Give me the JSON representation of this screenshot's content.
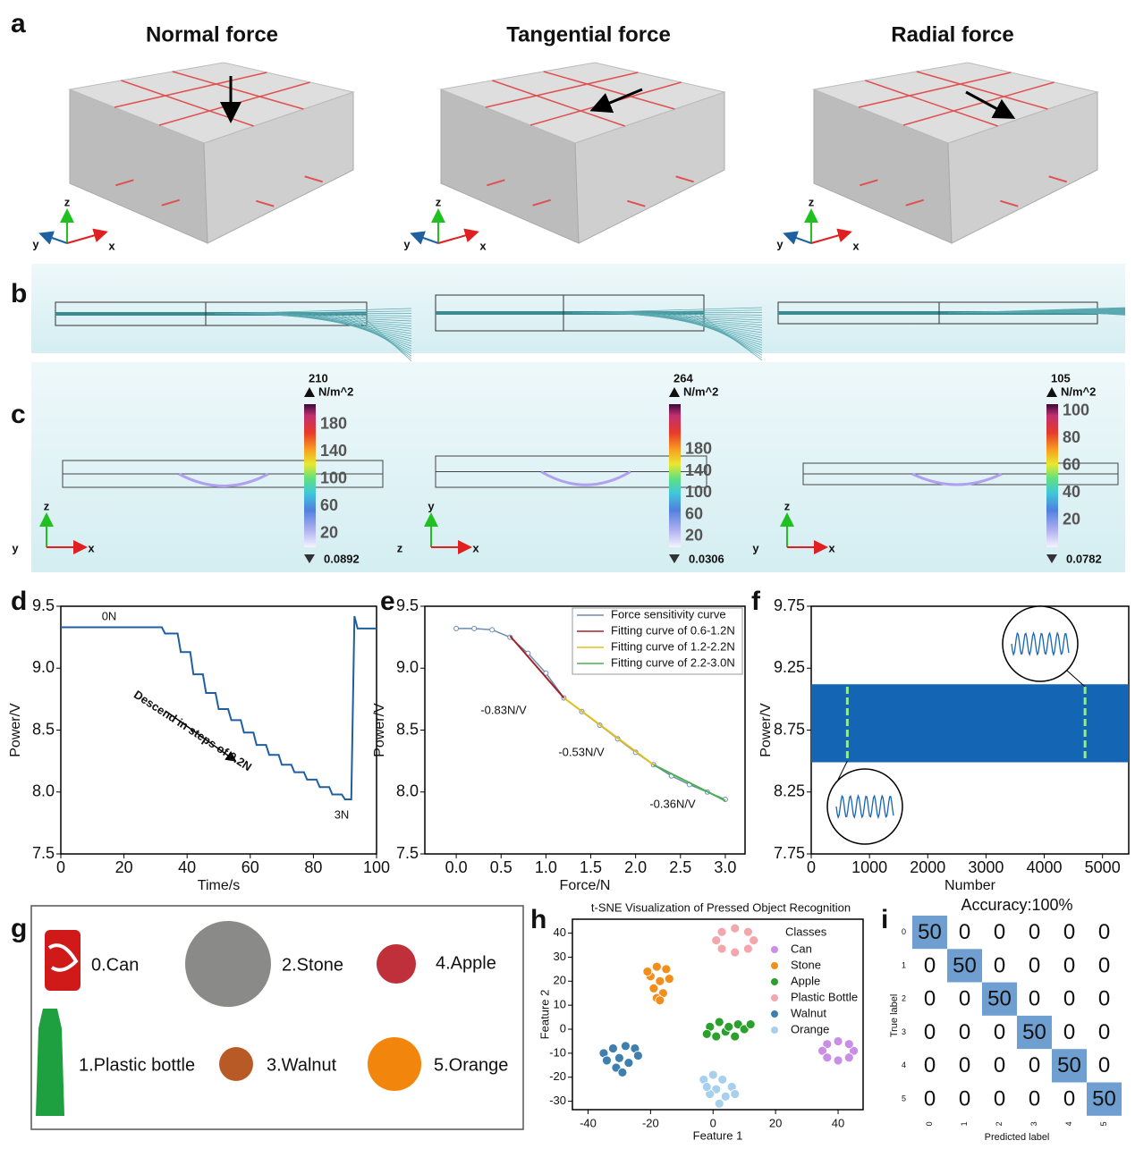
{
  "panel_labels": [
    "a",
    "b",
    "c",
    "d",
    "e",
    "f",
    "g",
    "h",
    "i"
  ],
  "force_panels": [
    {
      "title": "Normal force",
      "axes": [
        "z",
        "y",
        "x"
      ]
    },
    {
      "title": "Tangential force",
      "axes": [
        "z",
        "y",
        "x"
      ]
    },
    {
      "title": "Radial force",
      "axes": [
        "z",
        "y",
        "x"
      ]
    }
  ],
  "stress_panels": [
    {
      "max": 210,
      "unit": "N/m^2",
      "ticks": [
        180,
        140,
        100,
        60,
        20
      ],
      "min": 0.0892,
      "axes": [
        "z",
        "y",
        "x"
      ]
    },
    {
      "max": 264,
      "unit": "N/m^2",
      "ticks": [
        180,
        140,
        100,
        60,
        20
      ],
      "min": 0.0306,
      "axes": [
        "y",
        "z",
        "x"
      ]
    },
    {
      "max": 105,
      "unit": "N/m^2",
      "ticks": [
        100,
        80,
        60,
        40,
        20
      ],
      "min": 0.0782,
      "axes": [
        "z",
        "y",
        "x"
      ]
    }
  ],
  "chart_data": [
    {
      "type": "line",
      "xlabel": "Time/s",
      "ylabel": "Power/V",
      "annotations": [
        "0N",
        "3N",
        "Descend in steps of 0.2N"
      ],
      "xlim": [
        0,
        100
      ],
      "xticks": [
        0,
        20,
        40,
        60,
        80,
        100
      ],
      "ylim": [
        7.5,
        9.5
      ],
      "yticks": [
        7.5,
        {
          "value": 8,
          "label": "8.0"
        },
        8.5,
        {
          "value": 9,
          "label": "9.0"
        },
        9.5
      ],
      "x": [
        0,
        32,
        33,
        37,
        38,
        41,
        42,
        45,
        46,
        49,
        50,
        53,
        54,
        57,
        58,
        61,
        62,
        65,
        66,
        69,
        70,
        73,
        74,
        77,
        78,
        81,
        82,
        85,
        86,
        89,
        90,
        92,
        93,
        94,
        100
      ],
      "series": [
        {
          "color": "#1f5fa0",
          "values": [
            9.33,
            9.33,
            9.28,
            9.28,
            9.13,
            9.13,
            8.95,
            8.95,
            8.8,
            8.8,
            8.67,
            8.67,
            8.58,
            8.58,
            8.48,
            8.48,
            8.38,
            8.38,
            8.3,
            8.3,
            8.22,
            8.22,
            8.16,
            8.16,
            8.1,
            8.1,
            8.04,
            8.04,
            7.98,
            7.98,
            7.94,
            7.94,
            9.42,
            9.32,
            9.32
          ]
        }
      ]
    },
    {
      "type": "line",
      "xlabel": "Force/N",
      "ylabel": "Power/V",
      "annotations": [
        "-0.83N/V",
        "-0.53N/V",
        "-0.36N/V"
      ],
      "xlim": [
        -0.35,
        3.22
      ],
      "xticks": [
        {
          "value": 0,
          "label": "0.0"
        },
        0.5,
        {
          "value": 1,
          "label": "1.0"
        },
        1.5,
        {
          "value": 2,
          "label": "2.0"
        },
        2.5,
        {
          "value": 3,
          "label": "3.0"
        }
      ],
      "ylim": [
        7.5,
        9.5
      ],
      "yticks": [
        7.5,
        {
          "value": 8,
          "label": "8.0"
        },
        8.5,
        {
          "value": 9,
          "label": "9.0"
        },
        9.5
      ],
      "series": [
        {
          "name": "Force sensitivity curve",
          "color": "#6a8bb0",
          "markers": true,
          "x": [
            0,
            0.2,
            0.4,
            0.6,
            0.8,
            1,
            1.2,
            1.4,
            1.6,
            1.8,
            2,
            2.2,
            2.4,
            2.6,
            2.8,
            3
          ],
          "values": [
            9.32,
            9.32,
            9.31,
            9.25,
            9.12,
            8.96,
            8.76,
            8.65,
            8.54,
            8.43,
            8.32,
            8.22,
            8.13,
            8.06,
            8,
            7.94
          ]
        },
        {
          "name": "Fitting curve of 0.6-1.2N",
          "color": "#a0232a",
          "x": [
            0.6,
            1.2
          ],
          "values": [
            9.26,
            8.76
          ]
        },
        {
          "name": "Fitting curve of 1.2-2.2N",
          "color": "#e0c020",
          "x": [
            1.2,
            2.2
          ],
          "values": [
            8.76,
            8.22
          ]
        },
        {
          "name": "Fitting curve of 2.2-3.0N",
          "color": "#4caf50",
          "x": [
            2.2,
            3
          ],
          "values": [
            8.22,
            7.93
          ]
        }
      ]
    },
    {
      "type": "band",
      "xlabel": "Number",
      "ylabel": "Power/V",
      "xlim": [
        0,
        5450
      ],
      "xticks": [
        0,
        1000,
        2000,
        3000,
        4000,
        5000
      ],
      "ylim": [
        7.75,
        9.75
      ],
      "yticks": [
        7.75,
        8.25,
        8.75,
        9.25,
        9.75
      ],
      "x": [
        0,
        5450
      ],
      "highlights": [
        620,
        4700
      ],
      "highlight_color": "#90ee90",
      "series": [
        {
          "color": "#1565b5",
          "values": [
            9.12,
            9.12
          ],
          "low": [
            8.49,
            8.49
          ]
        }
      ]
    },
    {
      "type": "scatter",
      "title": "t-SNE Visualization of Pressed Object Recognition",
      "xlabel": "Feature 1",
      "ylabel": "Feature 2",
      "legend_title": "Classes",
      "xlim": [
        -45,
        48
      ],
      "xticks": [
        -40,
        -20,
        0,
        20,
        40
      ],
      "ylim": [
        -33.5,
        45.8
      ],
      "yticks": [
        -30,
        -20,
        -10,
        0,
        10,
        20,
        30,
        40
      ],
      "series": [
        {
          "name": "Can",
          "color": "#c98fe6",
          "x": [
            45,
            43.5,
            40,
            36.5,
            35,
            36.5,
            40,
            43.5
          ],
          "values": [
            -9,
            -6.2,
            -5,
            -6.2,
            -9,
            -11.8,
            -13,
            -11.8
          ]
        },
        {
          "name": "Stone",
          "color": "#f28e1c",
          "x": [
            -18,
            -15,
            -20,
            -17,
            -19,
            -16,
            -18,
            -21,
            -14,
            -17
          ],
          "values": [
            26,
            25,
            22,
            20,
            17,
            15,
            13,
            24,
            21,
            12
          ]
        },
        {
          "name": "Apple",
          "color": "#2ca02c",
          "x": [
            -1,
            2,
            4,
            1,
            8,
            10,
            7,
            12,
            5,
            -2
          ],
          "values": [
            1,
            3,
            -1,
            -3,
            2,
            0,
            -3,
            2,
            1,
            -2
          ]
        },
        {
          "name": "Plastic Bottle",
          "color": "#f4a6ad",
          "x": [
            13,
            11.2,
            7,
            2.8,
            1,
            2.8,
            7,
            11.2
          ],
          "values": [
            37,
            40.5,
            42,
            40.5,
            37,
            33.5,
            32,
            33.5
          ]
        },
        {
          "name": "Walnut",
          "color": "#3f7fb0",
          "x": [
            -35,
            -32,
            -28,
            -25,
            -30,
            -27,
            -31,
            -29,
            -34,
            -24
          ],
          "values": [
            -10,
            -8,
            -7,
            -8,
            -12,
            -14,
            -16,
            -18,
            -13,
            -11
          ]
        },
        {
          "name": "Orange",
          "color": "#a6d0ee",
          "x": [
            -3,
            0,
            3,
            6,
            1,
            4,
            2,
            -1,
            7,
            -2
          ],
          "values": [
            -21,
            -19,
            -21,
            -24,
            -25,
            -28,
            -31,
            -27,
            -27,
            -24
          ]
        }
      ]
    },
    {
      "type": "heatmap",
      "title": "Accuracy:100%",
      "xlabel": "Predicted label",
      "ylabel": "True label",
      "categories": [
        "0",
        "1",
        "2",
        "3",
        "4",
        "5"
      ],
      "color": "#6f9fd0",
      "matrix": [
        [
          50,
          0,
          0,
          0,
          0,
          0
        ],
        [
          0,
          50,
          0,
          0,
          0,
          0
        ],
        [
          0,
          0,
          50,
          0,
          0,
          0
        ],
        [
          0,
          0,
          0,
          50,
          0,
          0
        ],
        [
          0,
          0,
          0,
          0,
          50,
          0
        ],
        [
          0,
          0,
          0,
          0,
          0,
          50
        ]
      ]
    }
  ],
  "objects": [
    "0.Can",
    "2.Stone",
    "4.Apple",
    "1.Plastic bottle",
    "3.Walnut",
    "5.Orange"
  ]
}
